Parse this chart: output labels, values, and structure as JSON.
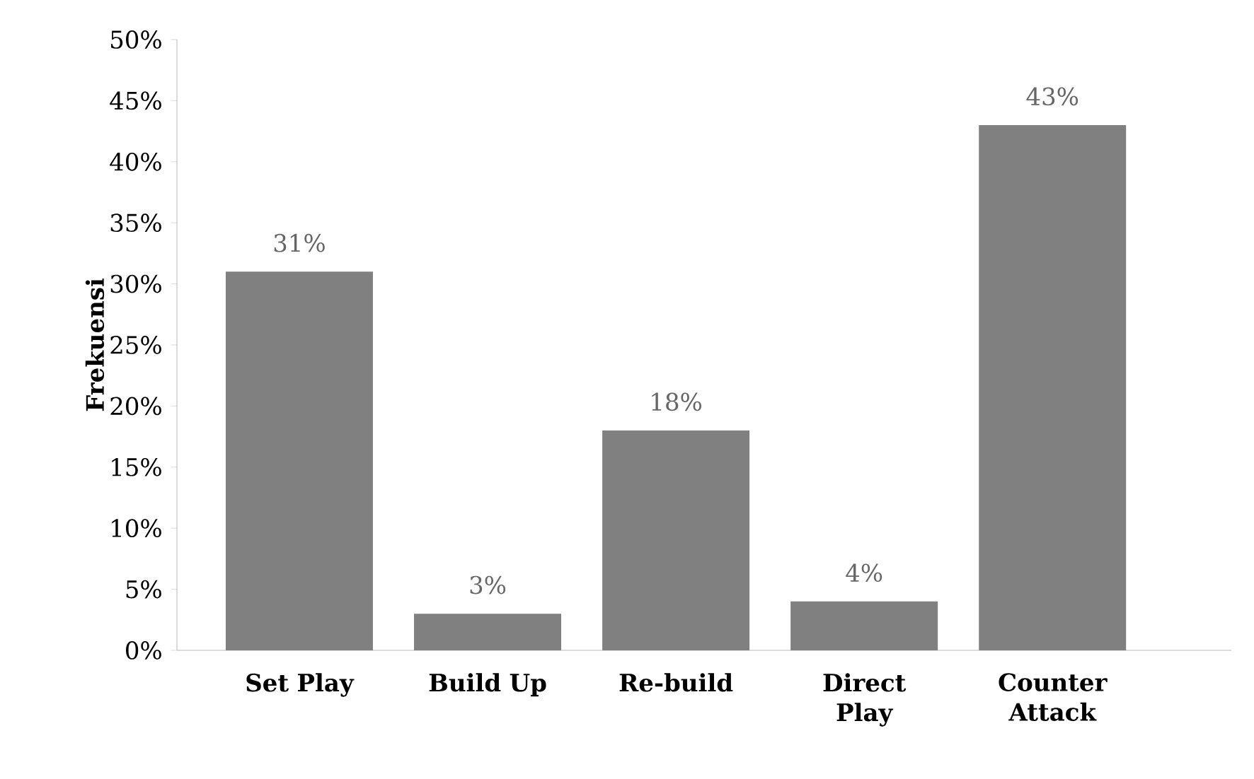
{
  "chart_data": {
    "type": "bar",
    "ylabel": "Frekuensi",
    "categories": [
      "Set Play",
      "Build Up",
      "Re-build",
      "Direct Play",
      "Counter Attack"
    ],
    "values": [
      31,
      3,
      18,
      4,
      43
    ],
    "value_labels": [
      "31%",
      "3%",
      "18%",
      "4%",
      "43%"
    ],
    "color": "#808080",
    "ylim": [
      0,
      50
    ],
    "yticks": [
      {
        "value": 0,
        "label": "0%"
      },
      {
        "value": 5,
        "label": "5%"
      },
      {
        "value": 10,
        "label": "10%"
      },
      {
        "value": 15,
        "label": "15%"
      },
      {
        "value": 20,
        "label": "20%"
      },
      {
        "value": 25,
        "label": "25%"
      },
      {
        "value": 30,
        "label": "30%"
      },
      {
        "value": 35,
        "label": "35%"
      },
      {
        "value": 40,
        "label": "40%"
      },
      {
        "value": 45,
        "label": "45%"
      },
      {
        "value": 50,
        "label": "50%"
      }
    ]
  }
}
